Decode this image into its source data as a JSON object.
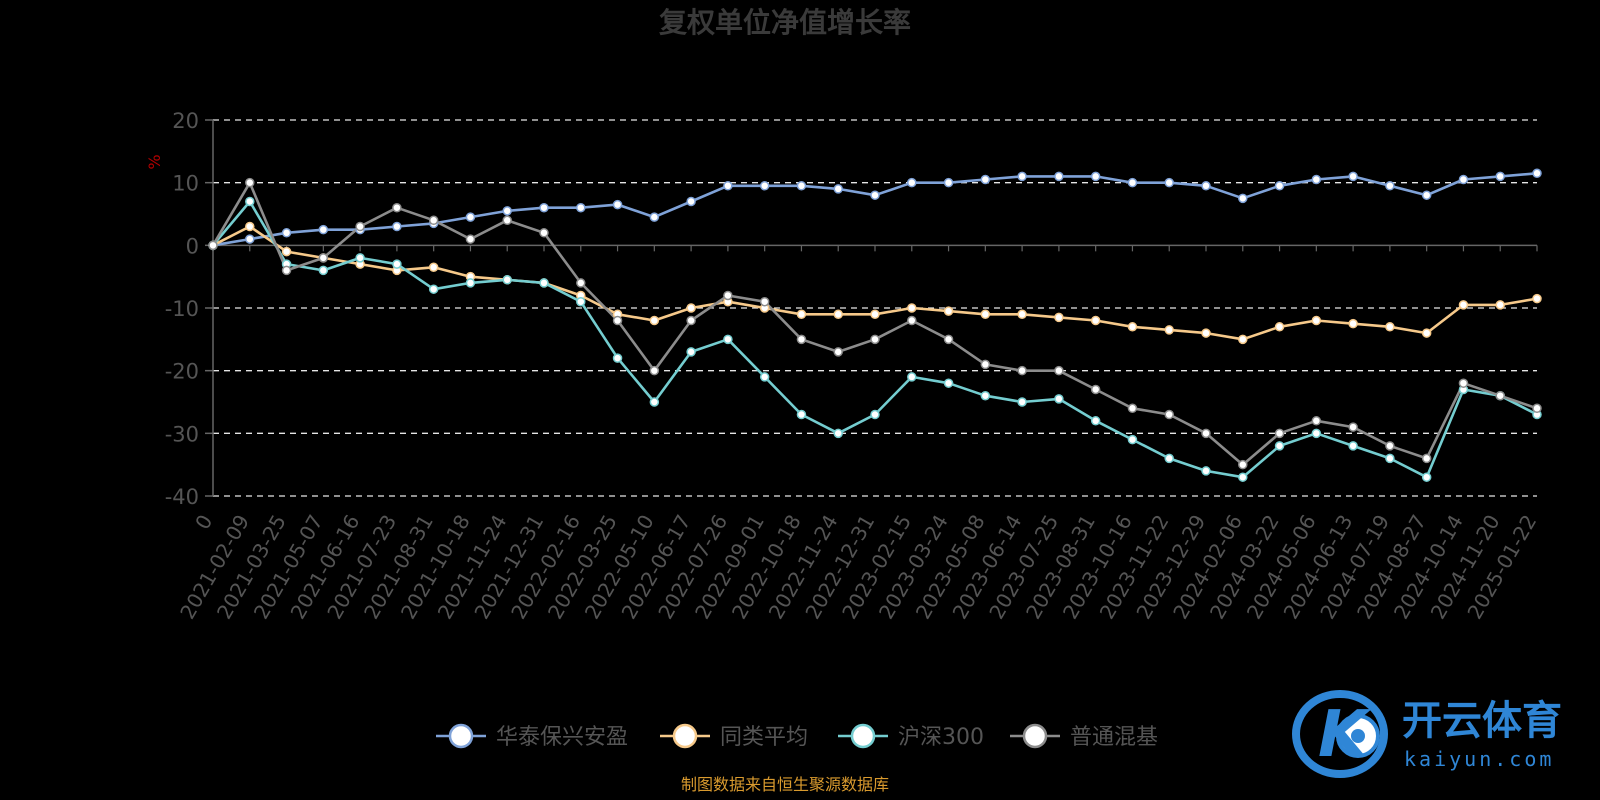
{
  "chart_data": {
    "type": "line",
    "title": "复权单位净值增长率",
    "ylabel": "%",
    "ylim": [
      -40,
      20
    ],
    "yticks": [
      20,
      10,
      0,
      -10,
      -20,
      -30,
      -40
    ],
    "grid": true,
    "legend_position": "bottom",
    "x_tick_labels": [
      "0",
      "2021-02-09",
      "2021-03-25",
      "2021-05-07",
      "2021-06-16",
      "2021-07-23",
      "2021-08-31",
      "2021-10-18",
      "2021-11-24",
      "2021-12-31",
      "2022-02-16",
      "2022-03-25",
      "2022-05-10",
      "2022-06-17",
      "2022-07-26",
      "2022-09-01",
      "2022-10-18",
      "2022-11-24",
      "2022-12-31",
      "2023-02-15",
      "2023-03-24",
      "2023-05-08",
      "2023-06-14",
      "2023-07-25",
      "2023-08-31",
      "2023-10-16",
      "2023-11-22",
      "2023-12-29",
      "2024-02-06",
      "2024-03-22",
      "2024-05-06",
      "2024-06-13",
      "2024-07-19",
      "2024-08-27",
      "2024-10-14",
      "2024-11-20",
      "2025-01-22"
    ],
    "series": [
      {
        "name": "华泰保兴安盈",
        "color": "#7fa2d8",
        "values": [
          0,
          1,
          2,
          2.5,
          2.5,
          3,
          3.5,
          4.5,
          5.5,
          6,
          6,
          6.5,
          4.5,
          7,
          9.5,
          9.5,
          9.5,
          9,
          8,
          10,
          10,
          10.5,
          11,
          11,
          11,
          10,
          10,
          9.5,
          7.5,
          9.5,
          10.5,
          11,
          9.5,
          8,
          10.5,
          11,
          11.5
        ]
      },
      {
        "name": "同类平均",
        "color": "#f6c98a",
        "values": [
          0,
          3,
          -1,
          -2,
          -3,
          -4,
          -3.5,
          -5,
          -5.5,
          -6,
          -8,
          -11,
          -12,
          -10,
          -9,
          -10,
          -11,
          -11,
          -11,
          -10,
          -10.5,
          -11,
          -11,
          -11.5,
          -12,
          -13,
          -13.5,
          -14,
          -15,
          -13,
          -12,
          -12.5,
          -13,
          -14,
          -9.5,
          -9.5,
          -8.5
        ]
      },
      {
        "name": "沪深300",
        "color": "#74cdd0",
        "values": [
          0,
          7,
          -3,
          -4,
          -2,
          -3,
          -7,
          -6,
          -5.5,
          -6,
          -9,
          -18,
          -25,
          -17,
          -15,
          -21,
          -27,
          -30,
          -27,
          -21,
          -22,
          -24,
          -25,
          -24.5,
          -28,
          -31,
          -34,
          -36,
          -37,
          -32,
          -30,
          -32,
          -34,
          -37,
          -23,
          -24,
          -27
        ]
      },
      {
        "name": "普通混基",
        "color": "#8c8c8c",
        "values": [
          0,
          10,
          -4,
          -2,
          3,
          6,
          4,
          1,
          4,
          2,
          -6,
          -12,
          -20,
          -12,
          -8,
          -9,
          -15,
          -17,
          -15,
          -12,
          -15,
          -19,
          -20,
          -20,
          -23,
          -26,
          -27,
          -30,
          -35,
          -30,
          -28,
          -29,
          -32,
          -34,
          -22,
          -24,
          -26
        ]
      }
    ]
  },
  "legend": {
    "items": [
      "华泰保兴安盈",
      "同类平均",
      "沪深300",
      "普通混基"
    ]
  },
  "source_note": "制图数据来自恒生聚源数据库",
  "watermark": {
    "brand": "开云体育",
    "sub": "kaiyun.com",
    "logo_glyph": "K",
    "color": "#2f86d6"
  }
}
